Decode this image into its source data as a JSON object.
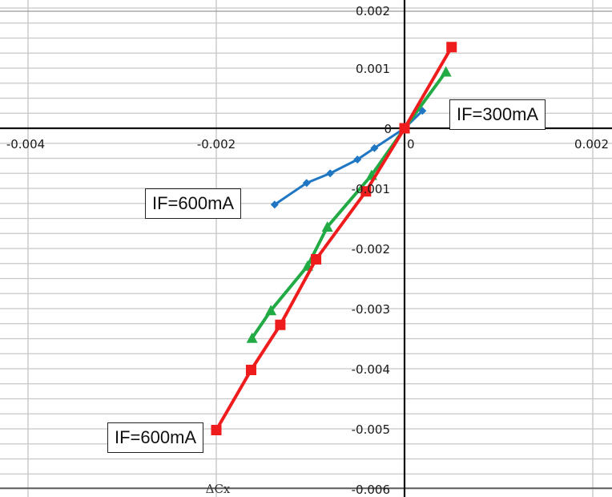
{
  "chart_data": {
    "type": "line",
    "title": "",
    "xlabel": "ΔCx",
    "ylabel": "",
    "xlim": [
      -0.0043,
      0.0022
    ],
    "ylim": [
      -0.006,
      0.002
    ],
    "grid": true,
    "x_ticks": [
      -0.004,
      -0.002,
      0,
      0.002
    ],
    "x_tick_labels": [
      "-0.004",
      "-0.002",
      "0",
      "0.002"
    ],
    "y_ticks": [
      0.002,
      0.001,
      0,
      -0.001,
      -0.002,
      -0.003,
      -0.004,
      -0.005,
      -0.006
    ],
    "y_tick_labels": [
      "0.002",
      "0.001",
      "0",
      "-0.001",
      "-0.002",
      "-0.003",
      "-0.004",
      "-0.005",
      "-0.006"
    ],
    "series": [
      {
        "color": "#1f77c4",
        "marker": "diamond",
        "x": [
          -0.00138,
          -0.00104,
          -0.00079,
          -0.0005,
          -0.00032,
          0,
          0.00019
        ],
        "y": [
          -0.00127,
          -0.00091,
          -0.00075,
          -0.00052,
          -0.00033,
          0,
          0.00029
        ]
      },
      {
        "color": "#22aa44",
        "marker": "triangle",
        "x": [
          -0.00162,
          -0.00142,
          -0.00103,
          -0.00082,
          -0.00035,
          0,
          0.00044
        ],
        "y": [
          -0.00349,
          -0.00303,
          -0.00229,
          -0.00164,
          -0.00078,
          0,
          0.00094
        ]
      },
      {
        "color": "#ee1c1c",
        "marker": "square",
        "x": [
          -0.002,
          -0.00163,
          -0.00132,
          -0.00094,
          -0.00041,
          0,
          0.0005
        ],
        "y": [
          -0.00502,
          -0.00402,
          -0.00327,
          -0.00218,
          -0.00105,
          0,
          0.00135
        ]
      }
    ],
    "annotations": [
      "IF=300mA",
      "IF=600mA",
      "IF=600mA"
    ]
  }
}
